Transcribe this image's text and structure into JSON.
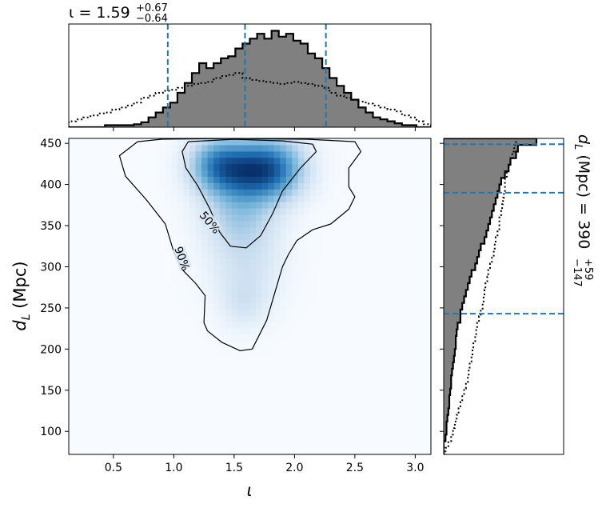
{
  "chart_data": [
    {
      "type": "heatmap",
      "panel": "joint",
      "xlabel": "ι",
      "ylabel_main": "d",
      "ylabel_sub": "L",
      "ylabel_unit": " (Mpc)",
      "xlim": [
        0.13,
        3.13
      ],
      "ylim": [
        72,
        456
      ],
      "x_ticks": [
        {
          "value": 0.5,
          "label": "0.5"
        },
        {
          "value": 1.0,
          "label": "1.0"
        },
        {
          "value": 1.5,
          "label": "1.5"
        },
        {
          "value": 2.0,
          "label": "2.0"
        },
        {
          "value": 2.5,
          "label": "2.5"
        },
        {
          "value": 3.0,
          "label": "3.0"
        }
      ],
      "y_ticks": [
        {
          "value": 100,
          "label": "100"
        },
        {
          "value": 150,
          "label": "150"
        },
        {
          "value": 200,
          "label": "200"
        },
        {
          "value": 250,
          "label": "250"
        },
        {
          "value": 300,
          "label": "300"
        },
        {
          "value": 350,
          "label": "350"
        },
        {
          "value": 400,
          "label": "400"
        },
        {
          "value": 450,
          "label": "450"
        }
      ],
      "density_peaks": [
        {
          "x": 1.62,
          "y": 418,
          "weight": 1.0,
          "sx": 0.22,
          "sy": 24
        },
        {
          "x": 1.35,
          "y": 425,
          "weight": 0.55,
          "sx": 0.15,
          "sy": 22
        },
        {
          "x": 1.85,
          "y": 420,
          "weight": 0.5,
          "sx": 0.17,
          "sy": 25
        },
        {
          "x": 1.55,
          "y": 365,
          "weight": 0.35,
          "sx": 0.2,
          "sy": 30
        },
        {
          "x": 1.6,
          "y": 300,
          "weight": 0.18,
          "sx": 0.2,
          "sy": 35
        },
        {
          "x": 1.58,
          "y": 255,
          "weight": 0.13,
          "sx": 0.12,
          "sy": 20
        }
      ],
      "contours": [
        {
          "label": "50%",
          "label_at": [
            1.3,
            354
          ],
          "label_angle": 50,
          "points": [
            [
              1.12,
              452
            ],
            [
              1.5,
              455
            ],
            [
              1.9,
              453
            ],
            [
              2.15,
              449
            ],
            [
              2.18,
              440
            ],
            [
              2.05,
              420
            ],
            [
              1.9,
              392
            ],
            [
              1.82,
              365
            ],
            [
              1.72,
              338
            ],
            [
              1.6,
              323
            ],
            [
              1.47,
              325
            ],
            [
              1.38,
              342
            ],
            [
              1.3,
              370
            ],
            [
              1.2,
              398
            ],
            [
              1.1,
              420
            ],
            [
              1.07,
              440
            ]
          ]
        },
        {
          "label": "90%",
          "label_at": [
            1.07,
            310
          ],
          "label_angle": 70,
          "points": [
            [
              0.7,
              452
            ],
            [
              0.9,
              455
            ],
            [
              1.5,
              456
            ],
            [
              2.1,
              455
            ],
            [
              2.5,
              452
            ],
            [
              2.55,
              440
            ],
            [
              2.45,
              420
            ],
            [
              2.45,
              397
            ],
            [
              2.5,
              385
            ],
            [
              2.45,
              370
            ],
            [
              2.3,
              352
            ],
            [
              2.15,
              345
            ],
            [
              2.02,
              332
            ],
            [
              1.95,
              315
            ],
            [
              1.9,
              300
            ],
            [
              1.85,
              275
            ],
            [
              1.77,
              235
            ],
            [
              1.65,
              200
            ],
            [
              1.55,
              198
            ],
            [
              1.4,
              208
            ],
            [
              1.28,
              222
            ],
            [
              1.25,
              232
            ],
            [
              1.26,
              265
            ],
            [
              1.18,
              280
            ],
            [
              1.08,
              295
            ],
            [
              1.0,
              318
            ],
            [
              0.93,
              352
            ],
            [
              0.77,
              382
            ],
            [
              0.6,
              410
            ],
            [
              0.55,
              435
            ]
          ]
        }
      ],
      "grid": false
    },
    {
      "type": "histogram",
      "panel": "top-marginal",
      "title_symbol": "ι = 1.59",
      "title_upper": "+0.67",
      "title_lower": "−0.64",
      "xlim": [
        0.13,
        3.13
      ],
      "bin_edges_start": 0.13,
      "bin_width": 0.06,
      "posterior": [
        0,
        0,
        0,
        0,
        0,
        0.02,
        0.02,
        0.02,
        0.02,
        0.03,
        0.05,
        0.1,
        0.15,
        0.2,
        0.25,
        0.35,
        0.45,
        0.55,
        0.65,
        0.6,
        0.65,
        0.7,
        0.72,
        0.8,
        0.85,
        0.9,
        0.95,
        0.9,
        0.98,
        0.92,
        0.95,
        0.88,
        0.85,
        0.75,
        0.7,
        0.6,
        0.5,
        0.42,
        0.35,
        0.28,
        0.2,
        0.15,
        0.1,
        0.08,
        0.06,
        0.04,
        0.02,
        0.02,
        0,
        0
      ],
      "prior": [
        0.06,
        0.08,
        0.1,
        0.12,
        0.14,
        0.15,
        0.18,
        0.2,
        0.22,
        0.25,
        0.3,
        0.32,
        0.35,
        0.37,
        0.38,
        0.4,
        0.42,
        0.44,
        0.45,
        0.46,
        0.5,
        0.52,
        0.53,
        0.55,
        0.5,
        0.48,
        0.47,
        0.46,
        0.45,
        0.44,
        0.45,
        0.46,
        0.45,
        0.44,
        0.42,
        0.4,
        0.35,
        0.32,
        0.3,
        0.28,
        0.26,
        0.24,
        0.22,
        0.2,
        0.18,
        0.16,
        0.12,
        0.1,
        0.06,
        0.03
      ],
      "ymax": 1.0,
      "credible_lines": [
        0.95,
        1.59,
        2.26
      ],
      "line_color": "#1f77b4",
      "fill_color": "#808080"
    },
    {
      "type": "histogram",
      "panel": "right-marginal",
      "orientation": "horizontal",
      "title_prefix": "d",
      "title_sub": "L",
      "title_mid": " (Mpc) = 390",
      "title_upper": "+59",
      "title_lower": "−147",
      "ylim": [
        72,
        456
      ],
      "bin_edges_start": 72,
      "bin_width": 8,
      "posterior": [
        0,
        0,
        0.02,
        0.03,
        0.03,
        0.04,
        0.05,
        0.06,
        0.06,
        0.07,
        0.08,
        0.08,
        0.09,
        0.1,
        0.11,
        0.12,
        0.13,
        0.13,
        0.14,
        0.15,
        0.18,
        0.18,
        0.2,
        0.22,
        0.24,
        0.26,
        0.28,
        0.3,
        0.34,
        0.36,
        0.38,
        0.4,
        0.44,
        0.46,
        0.48,
        0.5,
        0.52,
        0.54,
        0.56,
        0.58,
        0.6,
        0.62,
        0.66,
        0.7,
        0.72,
        0.78,
        0.8,
        1.0
      ],
      "prior": [
        0.02,
        0.05,
        0.08,
        0.1,
        0.12,
        0.14,
        0.16,
        0.18,
        0.2,
        0.22,
        0.24,
        0.26,
        0.27,
        0.28,
        0.3,
        0.31,
        0.32,
        0.34,
        0.35,
        0.36,
        0.38,
        0.4,
        0.42,
        0.43,
        0.44,
        0.45,
        0.47,
        0.48,
        0.5,
        0.52,
        0.54,
        0.55,
        0.56,
        0.58,
        0.6,
        0.6,
        0.62,
        0.63,
        0.64,
        0.65,
        0.66,
        0.66,
        0.68,
        0.7,
        0.72,
        0.74,
        0.76,
        0.78
      ],
      "xmax": 1.0,
      "credible_lines": [
        243,
        390,
        449
      ],
      "line_color": "#1f77b4",
      "fill_color": "#808080"
    }
  ]
}
